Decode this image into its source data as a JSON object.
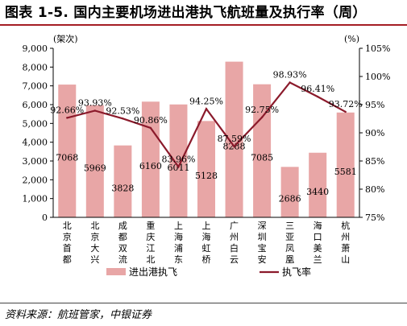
{
  "figure": {
    "title": "图表 1-5. 国内主要机场进出港执飞航班量及执行率（周）",
    "source": "资料来源：航班管家，中银证券",
    "colors": {
      "bar": "#e8a6a6",
      "line": "#8b1a2b",
      "title_rule": "#a41d24"
    }
  },
  "chart_data": {
    "type": "bar",
    "categories": [
      "北京首都",
      "北京大兴",
      "成都双流",
      "重庆江北",
      "上海浦东",
      "上海虹桥",
      "广州白云",
      "深圳宝安",
      "三亚凤凰",
      "海口美兰",
      "杭州萧山"
    ],
    "series": [
      {
        "name": "进出港执飞",
        "type": "bar",
        "axis": "left",
        "values": [
          7068,
          5969,
          3828,
          6160,
          6011,
          5128,
          8288,
          7085,
          2686,
          3440,
          5581
        ],
        "labels": [
          "7068",
          "5969",
          "3828",
          "6160",
          "6011",
          "5128",
          "8288",
          "7085",
          "2686",
          "3440",
          "5581"
        ]
      },
      {
        "name": "执飞率",
        "type": "line",
        "axis": "right",
        "values": [
          92.66,
          93.93,
          92.53,
          90.86,
          83.96,
          94.25,
          87.59,
          92.75,
          98.93,
          96.41,
          93.72
        ],
        "labels": [
          "92.66%",
          "93.93%",
          "92.53%",
          "90.86%",
          "83.96%",
          "94.25%",
          "87.59%",
          "92.75%",
          "98.93%",
          "96.41%",
          "93.72%"
        ]
      }
    ],
    "y_left": {
      "unit": "(架次)",
      "ylim": [
        0,
        9000
      ],
      "ticks": [
        "0",
        "1,000",
        "2,000",
        "3,000",
        "4,000",
        "5,000",
        "6,000",
        "7,000",
        "8,000",
        "9,000"
      ]
    },
    "y_right": {
      "unit": "(%)",
      "ylim": [
        75,
        105
      ],
      "ticks": [
        "75%",
        "80%",
        "85%",
        "90%",
        "95%",
        "100%",
        "105%"
      ]
    },
    "legend": {
      "position": "bottom",
      "items": [
        "进出港执飞",
        "执飞率"
      ]
    },
    "grid": false
  }
}
